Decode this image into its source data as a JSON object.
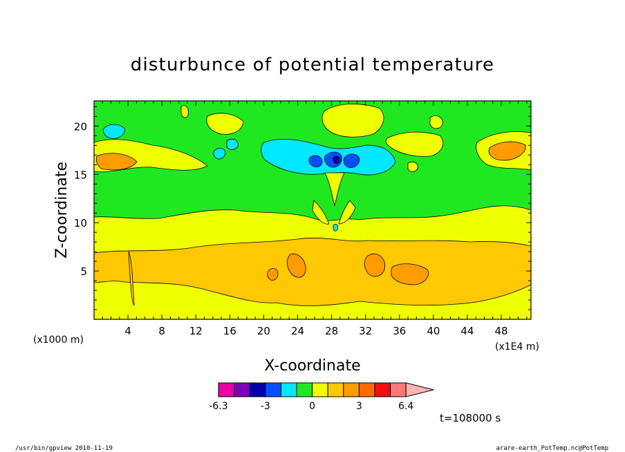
{
  "chart_data": {
    "type": "heatmap",
    "title": "disturbunce of potential temperature",
    "xlabel": "X-coordinate",
    "ylabel": "Z-coordinate",
    "x_unit": "(x1000 m)",
    "x_scale_note": "(x1E4 m)",
    "x_ticks": [
      "4",
      "8",
      "12",
      "16",
      "20",
      "24",
      "28",
      "32",
      "36",
      "40",
      "44",
      "48"
    ],
    "y_ticks": [
      "5",
      "10",
      "15",
      "20"
    ],
    "xlim": [
      0,
      51.5
    ],
    "ylim": [
      0,
      22.6
    ],
    "colorbar": {
      "colors": [
        "#e800a8",
        "#8000b8",
        "#0000a8",
        "#0050ff",
        "#00e8ff",
        "#20e820",
        "#f0ff00",
        "#ffc800",
        "#ff9c00",
        "#ff6c00",
        "#f01010",
        "#ff7878",
        "#ffb4b4"
      ],
      "labels": [
        "-6.3",
        "-3",
        "0",
        "3",
        "6.4"
      ]
    },
    "time_label": "t=108000 s",
    "footer_left": "/usr/bin/gpview   2010-11-19",
    "footer_right": "arare-earth_PotTemp.nc@PotTemp"
  }
}
